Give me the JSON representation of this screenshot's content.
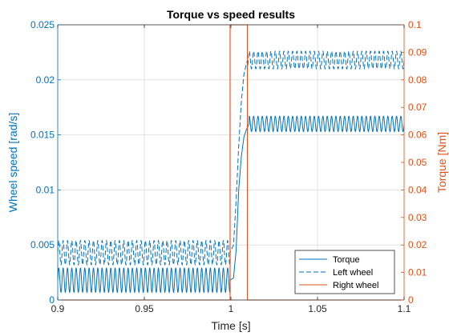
{
  "chart_data": {
    "type": "line",
    "title": "Torque vs speed results",
    "xlabel": "Time [s]",
    "ylabel_left": "Wheel speed [rad/s]",
    "ylabel_right": "Torque [Nm]",
    "xlim": [
      0.9,
      1.1
    ],
    "ylim_left": [
      0,
      0.025
    ],
    "ylim_right": [
      0,
      0.1
    ],
    "xticks": [
      "0.9",
      "0.95",
      "1",
      "1.05",
      "1.1"
    ],
    "yticks_left": [
      "0",
      "0.005",
      "0.01",
      "0.015",
      "0.02",
      "0.025"
    ],
    "yticks_right": [
      "0",
      "0.01",
      "0.02",
      "0.03",
      "0.04",
      "0.05",
      "0.06",
      "0.07",
      "0.08",
      "0.09",
      "0.1"
    ],
    "grid": true,
    "legend_position": "bottom-right",
    "colors": {
      "left_axis": "#0072BD",
      "right_axis": "#D95319"
    },
    "series": [
      {
        "name": "Torque",
        "axis": "left",
        "style": "solid",
        "color": "#0072BD",
        "segments": [
          {
            "t_start": 0.9,
            "t_end": 0.9995,
            "mean": 0.0018,
            "amplitude": 0.0011,
            "period": 0.0025
          },
          {
            "t_start": 1.0105,
            "t_end": 1.1,
            "mean": 0.016,
            "amplitude": 0.0007,
            "period": 0.0025
          }
        ],
        "transition": [
          [
            0.9995,
            0.0018
          ],
          [
            1.0015,
            0.002
          ],
          [
            1.003,
            0.0045
          ],
          [
            1.0045,
            0.01
          ],
          [
            1.006,
            0.013
          ],
          [
            1.0075,
            0.0148
          ],
          [
            1.009,
            0.0155
          ],
          [
            1.0105,
            0.016
          ]
        ]
      },
      {
        "name": "Left wheel",
        "axis": "left",
        "style": "dashed",
        "color": "#0072BD",
        "segments": [
          {
            "t_start": 0.9,
            "t_end": 0.9995,
            "mean": 0.0043,
            "amplitude": 0.0011,
            "period": 0.0025
          },
          {
            "t_start": 1.0095,
            "t_end": 1.1,
            "mean": 0.0218,
            "amplitude": 0.0008,
            "period": 0.0025
          }
        ],
        "transition": [
          [
            0.9995,
            0.0043
          ],
          [
            1.0015,
            0.005
          ],
          [
            1.003,
            0.009
          ],
          [
            1.0045,
            0.014
          ],
          [
            1.006,
            0.018
          ],
          [
            1.0075,
            0.0205
          ],
          [
            1.0095,
            0.0218
          ]
        ]
      },
      {
        "name": "Right wheel",
        "axis": "right",
        "style": "solid",
        "color": "#D95319",
        "points": [
          [
            0.9,
            0
          ],
          [
            0.9995,
            0
          ],
          [
            0.9995,
            0.1
          ],
          [
            1.0095,
            0.1
          ],
          [
            1.0095,
            0
          ],
          [
            1.1,
            0
          ]
        ]
      }
    ]
  }
}
